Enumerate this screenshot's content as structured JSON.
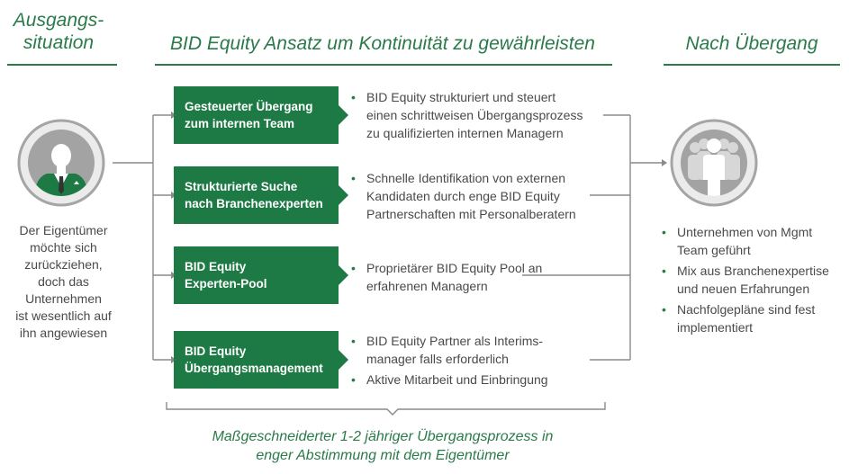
{
  "headers": {
    "left": "Ausgangs-\nsituation",
    "middle": "BID Equity Ansatz um Kontinuität zu gewährleisten",
    "right": "Nach Übergang"
  },
  "owner_text": "Der Eigentümer\nmöchte sich\nzurückziehen,\ndoch das\nUnternehmen\nist wesentlich auf\nihn angewiesen",
  "steps": [
    {
      "label": "Gesteuerter Übergang\nzum internen Team",
      "bullets": [
        "BID Equity strukturiert und steuert\neinen schrittweisen Übergangsprozess\nzu qualifizierten internen Managern"
      ]
    },
    {
      "label": "Strukturierte Suche\nnach Branchenexperten",
      "bullets": [
        "Schnelle Identifikation von externen\nKandidaten durch enge BID Equity\nPartnerschaften mit Personalberatern"
      ]
    },
    {
      "label": "BID Equity\nExperten-Pool",
      "bullets": [
        "Proprietärer BID Equity Pool an\nerfahrenen Managern"
      ]
    },
    {
      "label": "BID Equity\nÜbergangsmanagement",
      "bullets": [
        "BID Equity Partner als Interims-\nmanager falls erforderlich",
        "Aktive Mitarbeit und Einbringung"
      ]
    }
  ],
  "outcomes": [
    "Unternehmen von Mgmt\nTeam geführt",
    "Mix aus Branchenexpertise\nund neuen Erfahrungen",
    "Nachfolgepläne sind fest\nimplementiert"
  ],
  "footer": "Maßgeschneiderter 1-2 jähriger Übergangsprozess in\nenger Abstimmung mit dem Eigentümer",
  "colors": {
    "green": "#1e7a45",
    "accent": "#2a7a4a",
    "grey": "#9a9a9a"
  },
  "icons": {
    "owner": "businessman-icon",
    "team": "team-icon"
  }
}
